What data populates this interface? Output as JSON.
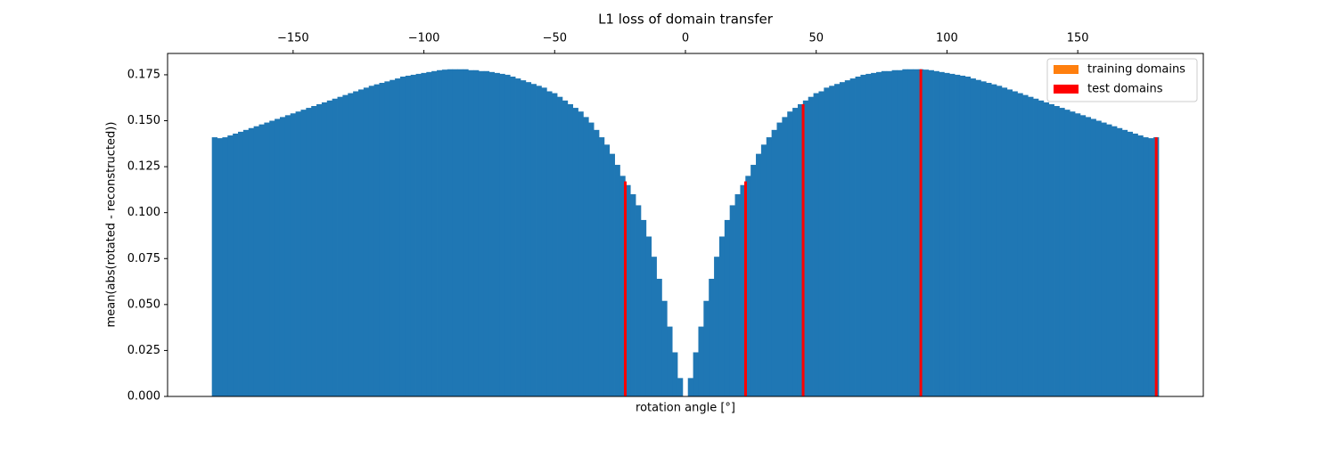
{
  "chart_data": {
    "type": "bar",
    "title": "L1 loss of domain transfer",
    "xlabel": "rotation angle [°]",
    "ylabel": "mean(abs(rotated - reconstructed))",
    "xlim": [
      -198,
      198
    ],
    "ylim": [
      0,
      0.1866
    ],
    "xticks": [
      -150,
      -100,
      -50,
      0,
      50,
      100,
      150
    ],
    "yticks": [
      {
        "value": 0,
        "label": "0.000"
      },
      {
        "value": 0.025,
        "label": "0.025"
      },
      {
        "value": 0.05,
        "label": "0.050"
      },
      {
        "value": 0.075,
        "label": "0.075"
      },
      {
        "value": 0.1,
        "label": "0.100"
      },
      {
        "value": 0.125,
        "label": "0.125"
      },
      {
        "value": 0.15,
        "label": "0.150"
      },
      {
        "value": 0.175,
        "label": "0.175"
      }
    ],
    "legend": "upper right",
    "series": [
      {
        "color": "#1f77b4",
        "x": [
          -180,
          -178,
          -176,
          -174,
          -172,
          -170,
          -168,
          -166,
          -164,
          -162,
          -160,
          -158,
          -156,
          -154,
          -152,
          -150,
          -148,
          -146,
          -144,
          -142,
          -140,
          -138,
          -136,
          -134,
          -132,
          -130,
          -128,
          -126,
          -124,
          -122,
          -120,
          -118,
          -116,
          -114,
          -112,
          -110,
          -108,
          -106,
          -104,
          -102,
          -100,
          -98,
          -96,
          -94,
          -92,
          -90,
          -88,
          -86,
          -84,
          -82,
          -80,
          -78,
          -76,
          -74,
          -72,
          -70,
          -68,
          -66,
          -64,
          -62,
          -60,
          -58,
          -56,
          -54,
          -52,
          -50,
          -48,
          -46,
          -44,
          -42,
          -40,
          -38,
          -36,
          -34,
          -32,
          -30,
          -28,
          -26,
          -24,
          -22,
          -20,
          -18,
          -16,
          -14,
          -12,
          -10,
          -8,
          -6,
          -4,
          -2,
          0,
          2,
          4,
          6,
          8,
          10,
          12,
          14,
          16,
          18,
          20,
          22,
          24,
          26,
          28,
          30,
          32,
          34,
          36,
          38,
          40,
          42,
          44,
          46,
          48,
          50,
          52,
          54,
          56,
          58,
          60,
          62,
          64,
          66,
          68,
          70,
          72,
          74,
          76,
          78,
          80,
          82,
          84,
          86,
          88,
          90,
          92,
          94,
          96,
          98,
          100,
          102,
          104,
          106,
          108,
          110,
          112,
          114,
          116,
          118,
          120,
          122,
          124,
          126,
          128,
          130,
          132,
          134,
          136,
          138,
          140,
          142,
          144,
          146,
          148,
          150,
          152,
          154,
          156,
          158,
          160,
          162,
          164,
          166,
          168,
          170,
          172,
          174,
          176,
          178,
          180
        ],
        "values": [
          0.141,
          0.1405,
          0.141,
          0.142,
          0.143,
          0.144,
          0.145,
          0.146,
          0.147,
          0.148,
          0.149,
          0.15,
          0.151,
          0.152,
          0.153,
          0.154,
          0.155,
          0.156,
          0.157,
          0.158,
          0.159,
          0.16,
          0.161,
          0.162,
          0.163,
          0.164,
          0.165,
          0.166,
          0.167,
          0.168,
          0.169,
          0.1698,
          0.1706,
          0.1714,
          0.1722,
          0.173,
          0.174,
          0.1745,
          0.175,
          0.1755,
          0.176,
          0.1765,
          0.177,
          0.1775,
          0.1778,
          0.178,
          0.178,
          0.178,
          0.178,
          0.1775,
          0.1775,
          0.177,
          0.177,
          0.1765,
          0.176,
          0.1755,
          0.175,
          0.174,
          0.173,
          0.172,
          0.171,
          0.17,
          0.169,
          0.168,
          0.166,
          0.165,
          0.163,
          0.161,
          0.159,
          0.157,
          0.155,
          0.152,
          0.149,
          0.145,
          0.141,
          0.137,
          0.132,
          0.126,
          0.12,
          0.115,
          0.11,
          0.104,
          0.096,
          0.087,
          0.076,
          0.064,
          0.052,
          0.038,
          0.024,
          0.01,
          0,
          0.01,
          0.024,
          0.038,
          0.052,
          0.064,
          0.076,
          0.087,
          0.096,
          0.104,
          0.11,
          0.115,
          0.12,
          0.126,
          0.132,
          0.137,
          0.141,
          0.145,
          0.149,
          0.152,
          0.155,
          0.157,
          0.159,
          0.161,
          0.163,
          0.165,
          0.166,
          0.168,
          0.169,
          0.17,
          0.171,
          0.172,
          0.173,
          0.174,
          0.175,
          0.1755,
          0.176,
          0.1765,
          0.177,
          0.177,
          0.1775,
          0.1775,
          0.178,
          0.178,
          0.178,
          0.178,
          0.1778,
          0.1775,
          0.177,
          0.1765,
          0.176,
          0.1755,
          0.175,
          0.1745,
          0.174,
          0.173,
          0.1722,
          0.1714,
          0.1706,
          0.1698,
          0.169,
          0.168,
          0.167,
          0.166,
          0.165,
          0.164,
          0.163,
          0.162,
          0.161,
          0.16,
          0.159,
          0.158,
          0.157,
          0.156,
          0.155,
          0.154,
          0.153,
          0.152,
          0.151,
          0.15,
          0.149,
          0.148,
          0.147,
          0.146,
          0.145,
          0.144,
          0.143,
          0.142,
          0.141,
          0.1405,
          0.141
        ]
      },
      {
        "name": "training domains",
        "color": "#ff7f0e",
        "x": [],
        "values": []
      },
      {
        "name": "test domains",
        "color": "#ff0000",
        "x": [
          -23,
          23,
          45,
          90,
          180
        ],
        "values": [
          0.117,
          0.117,
          0.159,
          0.178,
          0.141
        ]
      }
    ]
  }
}
